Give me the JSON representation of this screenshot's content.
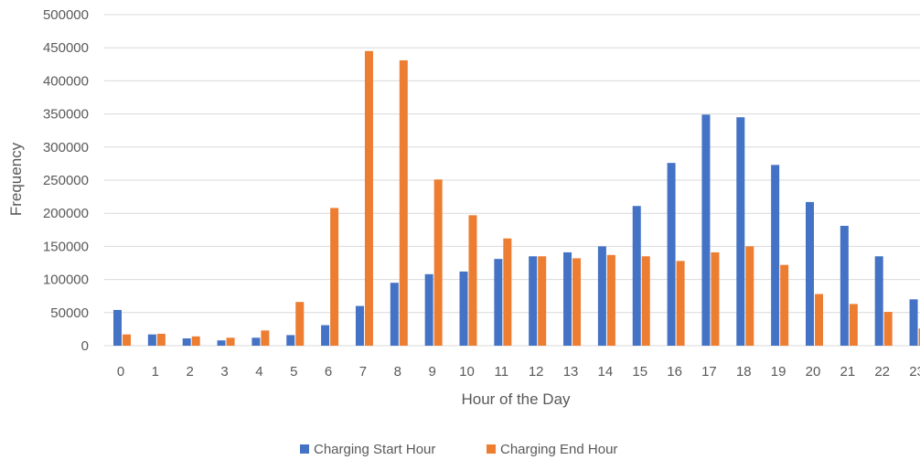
{
  "colors": {
    "start": "#4472C4",
    "end": "#ED7D31",
    "grid": "#D9D9D9",
    "text": "#595959"
  },
  "chart_data": {
    "type": "bar",
    "title": "",
    "xlabel": "Hour of the Day",
    "ylabel": "Frequency",
    "ylim": [
      0,
      500000
    ],
    "yticks": [
      "0",
      "50000",
      "100000",
      "150000",
      "200000",
      "250000",
      "300000",
      "350000",
      "400000",
      "450000",
      "500000"
    ],
    "grid": true,
    "legend_position": "bottom",
    "categories": [
      "0",
      "1",
      "2",
      "3",
      "4",
      "5",
      "6",
      "7",
      "8",
      "9",
      "10",
      "11",
      "12",
      "13",
      "14",
      "15",
      "16",
      "17",
      "18",
      "19",
      "20",
      "21",
      "22",
      "23"
    ],
    "series": [
      {
        "name": "Charging Start Hour",
        "color": "#4472C4",
        "values": [
          54000,
          17000,
          11000,
          8000,
          12000,
          16000,
          31000,
          60000,
          95000,
          108000,
          112000,
          131000,
          135000,
          141000,
          150000,
          211000,
          276000,
          349000,
          345000,
          273000,
          217000,
          181000,
          135000,
          70000
        ]
      },
      {
        "name": "Charging End Hour",
        "color": "#ED7D31",
        "values": [
          17000,
          18000,
          14000,
          12000,
          23000,
          66000,
          208000,
          445000,
          431000,
          251000,
          197000,
          162000,
          135000,
          132000,
          137000,
          135000,
          128000,
          141000,
          150000,
          122000,
          78000,
          63000,
          51000,
          26000
        ]
      }
    ]
  }
}
